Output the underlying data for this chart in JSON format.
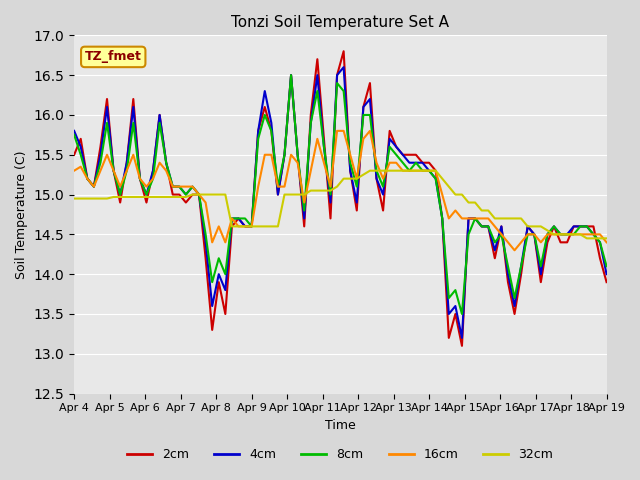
{
  "title": "Tonzi Soil Temperature Set A",
  "xlabel": "Time",
  "ylabel": "Soil Temperature (C)",
  "ylim": [
    12.5,
    17.0
  ],
  "yticks": [
    12.5,
    13.0,
    13.5,
    14.0,
    14.5,
    15.0,
    15.5,
    16.0,
    16.5,
    17.0
  ],
  "xtick_labels": [
    "Apr 4",
    "Apr 5",
    "Apr 6",
    "Apr 7",
    "Apr 8",
    "Apr 9",
    "Apr 10",
    "Apr 11",
    "Apr 12",
    "Apr 13",
    "Apr 14",
    "Apr 15",
    "Apr 16",
    "Apr 17",
    "Apr 18",
    "Apr 19"
  ],
  "bg_color": "#e8e8e8",
  "plot_bg": "#f0f0f0",
  "annotation_text": "TZ_fmet",
  "annotation_bg": "#ffff99",
  "annotation_border": "#cc8800",
  "series": {
    "2cm": {
      "color": "#cc0000",
      "lw": 1.5
    },
    "4cm": {
      "color": "#0000cc",
      "lw": 1.5
    },
    "8cm": {
      "color": "#00bb00",
      "lw": 1.5
    },
    "16cm": {
      "color": "#ff8800",
      "lw": 1.5
    },
    "32cm": {
      "color": "#cccc00",
      "lw": 1.5
    }
  },
  "t_2cm": [
    15.5,
    15.7,
    15.2,
    15.1,
    15.6,
    16.2,
    15.3,
    14.9,
    15.4,
    16.2,
    15.2,
    14.9,
    15.3,
    16.0,
    15.4,
    15.0,
    15.0,
    14.9,
    15.0,
    15.0,
    14.2,
    13.3,
    13.9,
    13.5,
    14.6,
    14.7,
    14.6,
    14.6,
    15.8,
    16.1,
    15.8,
    15.0,
    15.5,
    16.5,
    15.5,
    14.6,
    16.0,
    16.7,
    15.7,
    14.7,
    16.5,
    16.8,
    15.3,
    14.8,
    16.1,
    16.4,
    15.2,
    14.8,
    15.8,
    15.6,
    15.5,
    15.5,
    15.5,
    15.4,
    15.4,
    15.3,
    14.7,
    13.2,
    13.5,
    13.1,
    14.7,
    14.7,
    14.6,
    14.6,
    14.2,
    14.6,
    13.9,
    13.5,
    14.0,
    14.6,
    14.5,
    13.9,
    14.4,
    14.6,
    14.4,
    14.4,
    14.6,
    14.6,
    14.6,
    14.6,
    14.2,
    13.9
  ],
  "t_4cm": [
    15.8,
    15.6,
    15.2,
    15.1,
    15.5,
    16.1,
    15.3,
    15.0,
    15.4,
    16.1,
    15.2,
    15.0,
    15.3,
    16.0,
    15.4,
    15.1,
    15.1,
    15.0,
    15.1,
    15.0,
    14.4,
    13.6,
    14.0,
    13.8,
    14.7,
    14.7,
    14.6,
    14.6,
    15.8,
    16.3,
    15.9,
    15.0,
    15.5,
    16.5,
    15.5,
    14.7,
    15.9,
    16.5,
    15.6,
    14.9,
    16.5,
    16.6,
    15.3,
    14.9,
    16.1,
    16.2,
    15.2,
    15.0,
    15.7,
    15.6,
    15.5,
    15.4,
    15.4,
    15.4,
    15.3,
    15.2,
    14.7,
    13.5,
    13.6,
    13.2,
    14.7,
    14.7,
    14.6,
    14.6,
    14.3,
    14.6,
    14.0,
    13.6,
    14.1,
    14.6,
    14.5,
    14.0,
    14.5,
    14.6,
    14.5,
    14.5,
    14.6,
    14.6,
    14.6,
    14.5,
    14.4,
    14.0
  ],
  "t_8cm": [
    15.75,
    15.5,
    15.2,
    15.1,
    15.4,
    15.9,
    15.3,
    15.0,
    15.3,
    15.9,
    15.2,
    15.0,
    15.2,
    15.9,
    15.4,
    15.1,
    15.1,
    15.0,
    15.1,
    15.0,
    14.5,
    13.9,
    14.2,
    14.0,
    14.7,
    14.7,
    14.7,
    14.6,
    15.7,
    16.0,
    15.8,
    15.1,
    15.5,
    16.5,
    15.5,
    14.8,
    15.9,
    16.3,
    15.6,
    15.0,
    16.4,
    16.3,
    15.4,
    15.1,
    16.0,
    16.0,
    15.3,
    15.1,
    15.6,
    15.5,
    15.4,
    15.3,
    15.4,
    15.3,
    15.3,
    15.2,
    14.7,
    13.7,
    13.8,
    13.5,
    14.5,
    14.7,
    14.6,
    14.6,
    14.4,
    14.5,
    14.1,
    13.7,
    14.1,
    14.5,
    14.5,
    14.1,
    14.5,
    14.6,
    14.5,
    14.5,
    14.5,
    14.6,
    14.6,
    14.5,
    14.4,
    14.1
  ],
  "t_16cm": [
    15.3,
    15.35,
    15.2,
    15.1,
    15.3,
    15.5,
    15.3,
    15.1,
    15.3,
    15.5,
    15.2,
    15.1,
    15.2,
    15.4,
    15.3,
    15.1,
    15.1,
    15.1,
    15.1,
    15.0,
    14.9,
    14.4,
    14.6,
    14.4,
    14.7,
    14.6,
    14.6,
    14.6,
    15.1,
    15.5,
    15.5,
    15.1,
    15.1,
    15.5,
    15.4,
    14.9,
    15.3,
    15.7,
    15.4,
    15.1,
    15.8,
    15.8,
    15.5,
    15.2,
    15.7,
    15.8,
    15.4,
    15.2,
    15.4,
    15.4,
    15.3,
    15.3,
    15.3,
    15.3,
    15.3,
    15.3,
    15.0,
    14.7,
    14.8,
    14.7,
    14.7,
    14.7,
    14.7,
    14.7,
    14.6,
    14.5,
    14.4,
    14.3,
    14.4,
    14.5,
    14.5,
    14.4,
    14.5,
    14.5,
    14.5,
    14.5,
    14.5,
    14.5,
    14.5,
    14.5,
    14.5,
    14.4
  ],
  "t_32cm": [
    14.95,
    14.95,
    14.95,
    14.95,
    14.95,
    14.95,
    14.97,
    14.97,
    14.97,
    14.97,
    14.97,
    14.97,
    14.97,
    14.97,
    14.97,
    14.97,
    14.97,
    14.97,
    15.0,
    15.0,
    15.0,
    15.0,
    15.0,
    15.0,
    14.6,
    14.6,
    14.6,
    14.6,
    14.6,
    14.6,
    14.6,
    14.6,
    15.0,
    15.0,
    15.0,
    15.0,
    15.05,
    15.05,
    15.05,
    15.05,
    15.1,
    15.2,
    15.2,
    15.2,
    15.25,
    15.3,
    15.3,
    15.3,
    15.3,
    15.3,
    15.3,
    15.3,
    15.3,
    15.3,
    15.3,
    15.3,
    15.2,
    15.1,
    15.0,
    15.0,
    14.9,
    14.9,
    14.8,
    14.8,
    14.7,
    14.7,
    14.7,
    14.7,
    14.7,
    14.6,
    14.6,
    14.6,
    14.55,
    14.5,
    14.5,
    14.5,
    14.5,
    14.5,
    14.45,
    14.45,
    14.45,
    14.45
  ]
}
